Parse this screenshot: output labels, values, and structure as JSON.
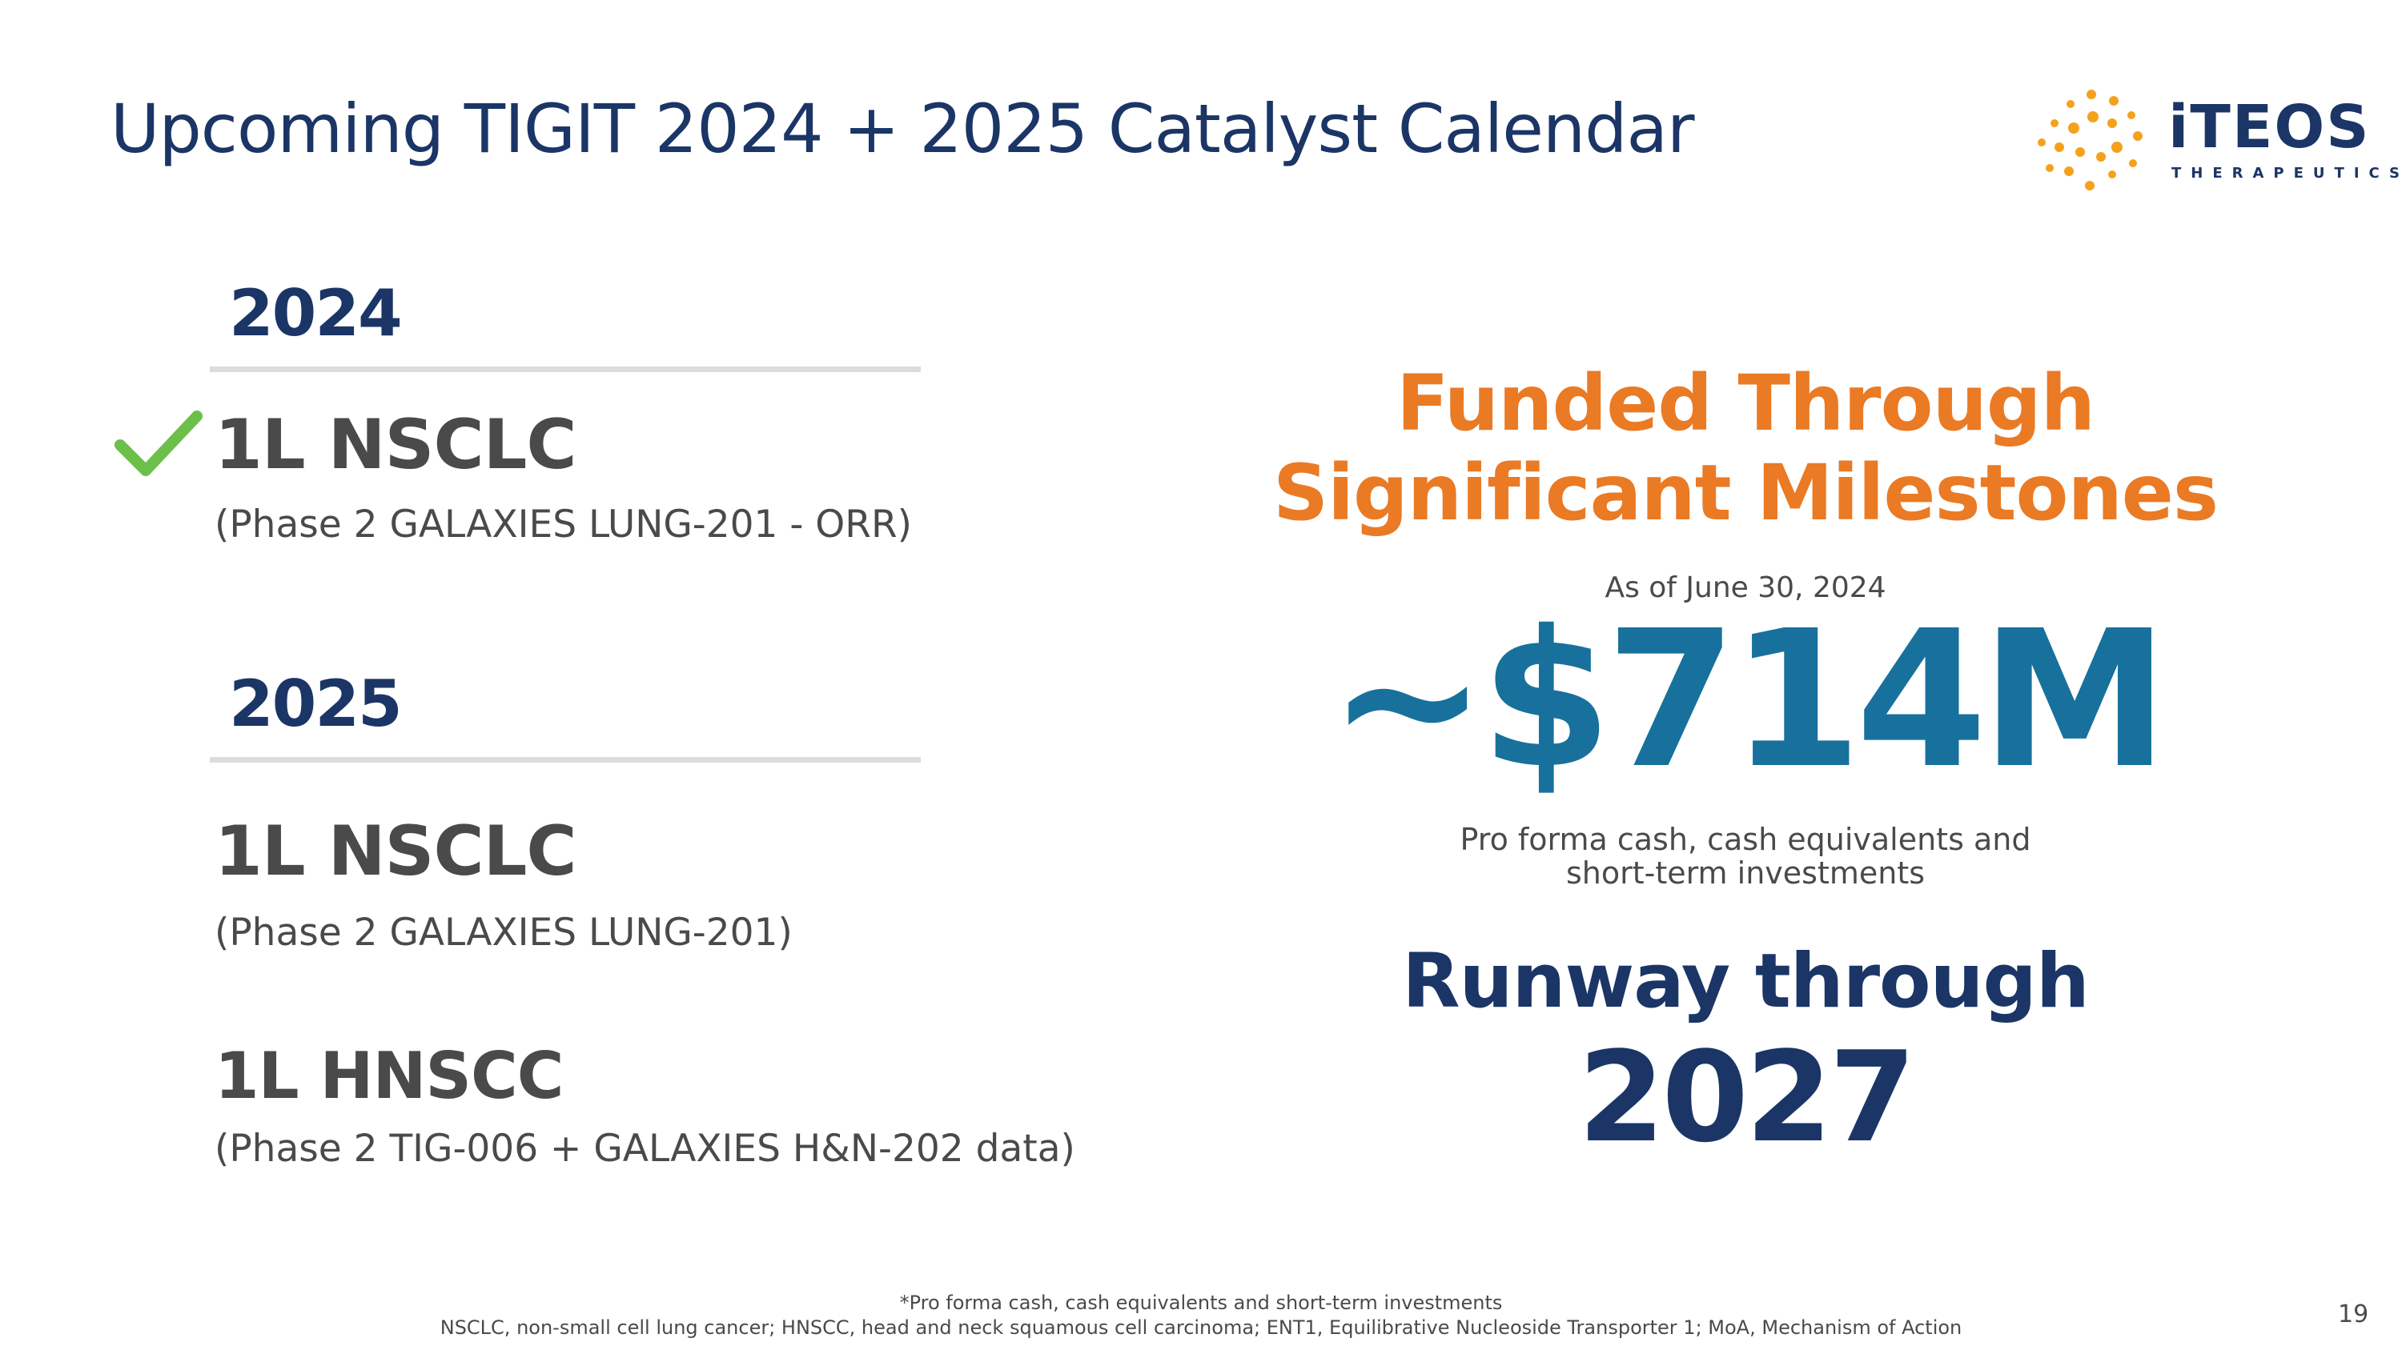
{
  "slide": {
    "title": "Upcoming TIGIT 2024 + 2025 Catalyst Calendar",
    "page_number": "19"
  },
  "logo": {
    "word": "iTEOS",
    "sub": "THERAPEUTICS",
    "dot_color": "#f4a21c",
    "text_color": "#1b3566"
  },
  "timeline": {
    "y2024": {
      "year": "2024",
      "items": [
        {
          "title": "1L NSCLC",
          "subtitle": "(Phase 2 GALAXIES LUNG-201 - ORR)",
          "completed": true
        }
      ]
    },
    "y2025": {
      "year": "2025",
      "items": [
        {
          "title": "1L NSCLC",
          "subtitle": "(Phase 2 GALAXIES LUNG-201)"
        },
        {
          "title": "1L HNSCC",
          "subtitle": "(Phase 2 TIG-006 + GALAXIES H&N-202 data)"
        }
      ]
    }
  },
  "funding": {
    "headline_line1": "Funded Through",
    "headline_line2": "Significant Milestones",
    "as_of": "As of June 30, 2024",
    "amount": "~$714M",
    "desc_line1": "Pro forma cash, cash equivalents and",
    "desc_line2": "short-term investments",
    "runway_label": "Runway through",
    "runway_year": "2027"
  },
  "footnotes": {
    "line1": "*Pro forma cash, cash equivalents and short-term investments",
    "line2": "NSCLC, non-small cell lung cancer; HNSCC, head and neck squamous cell carcinoma; ENT1, Equilibrative Nucleoside Transporter 1; MoA, Mechanism of Action"
  },
  "colors": {
    "navy": "#1b3566",
    "orange": "#ea7a24",
    "teal_blue": "#17719c",
    "gray_text": "#4a4a4a",
    "check_green": "#6cc04a",
    "rule_gray": "#dcdcdc"
  }
}
